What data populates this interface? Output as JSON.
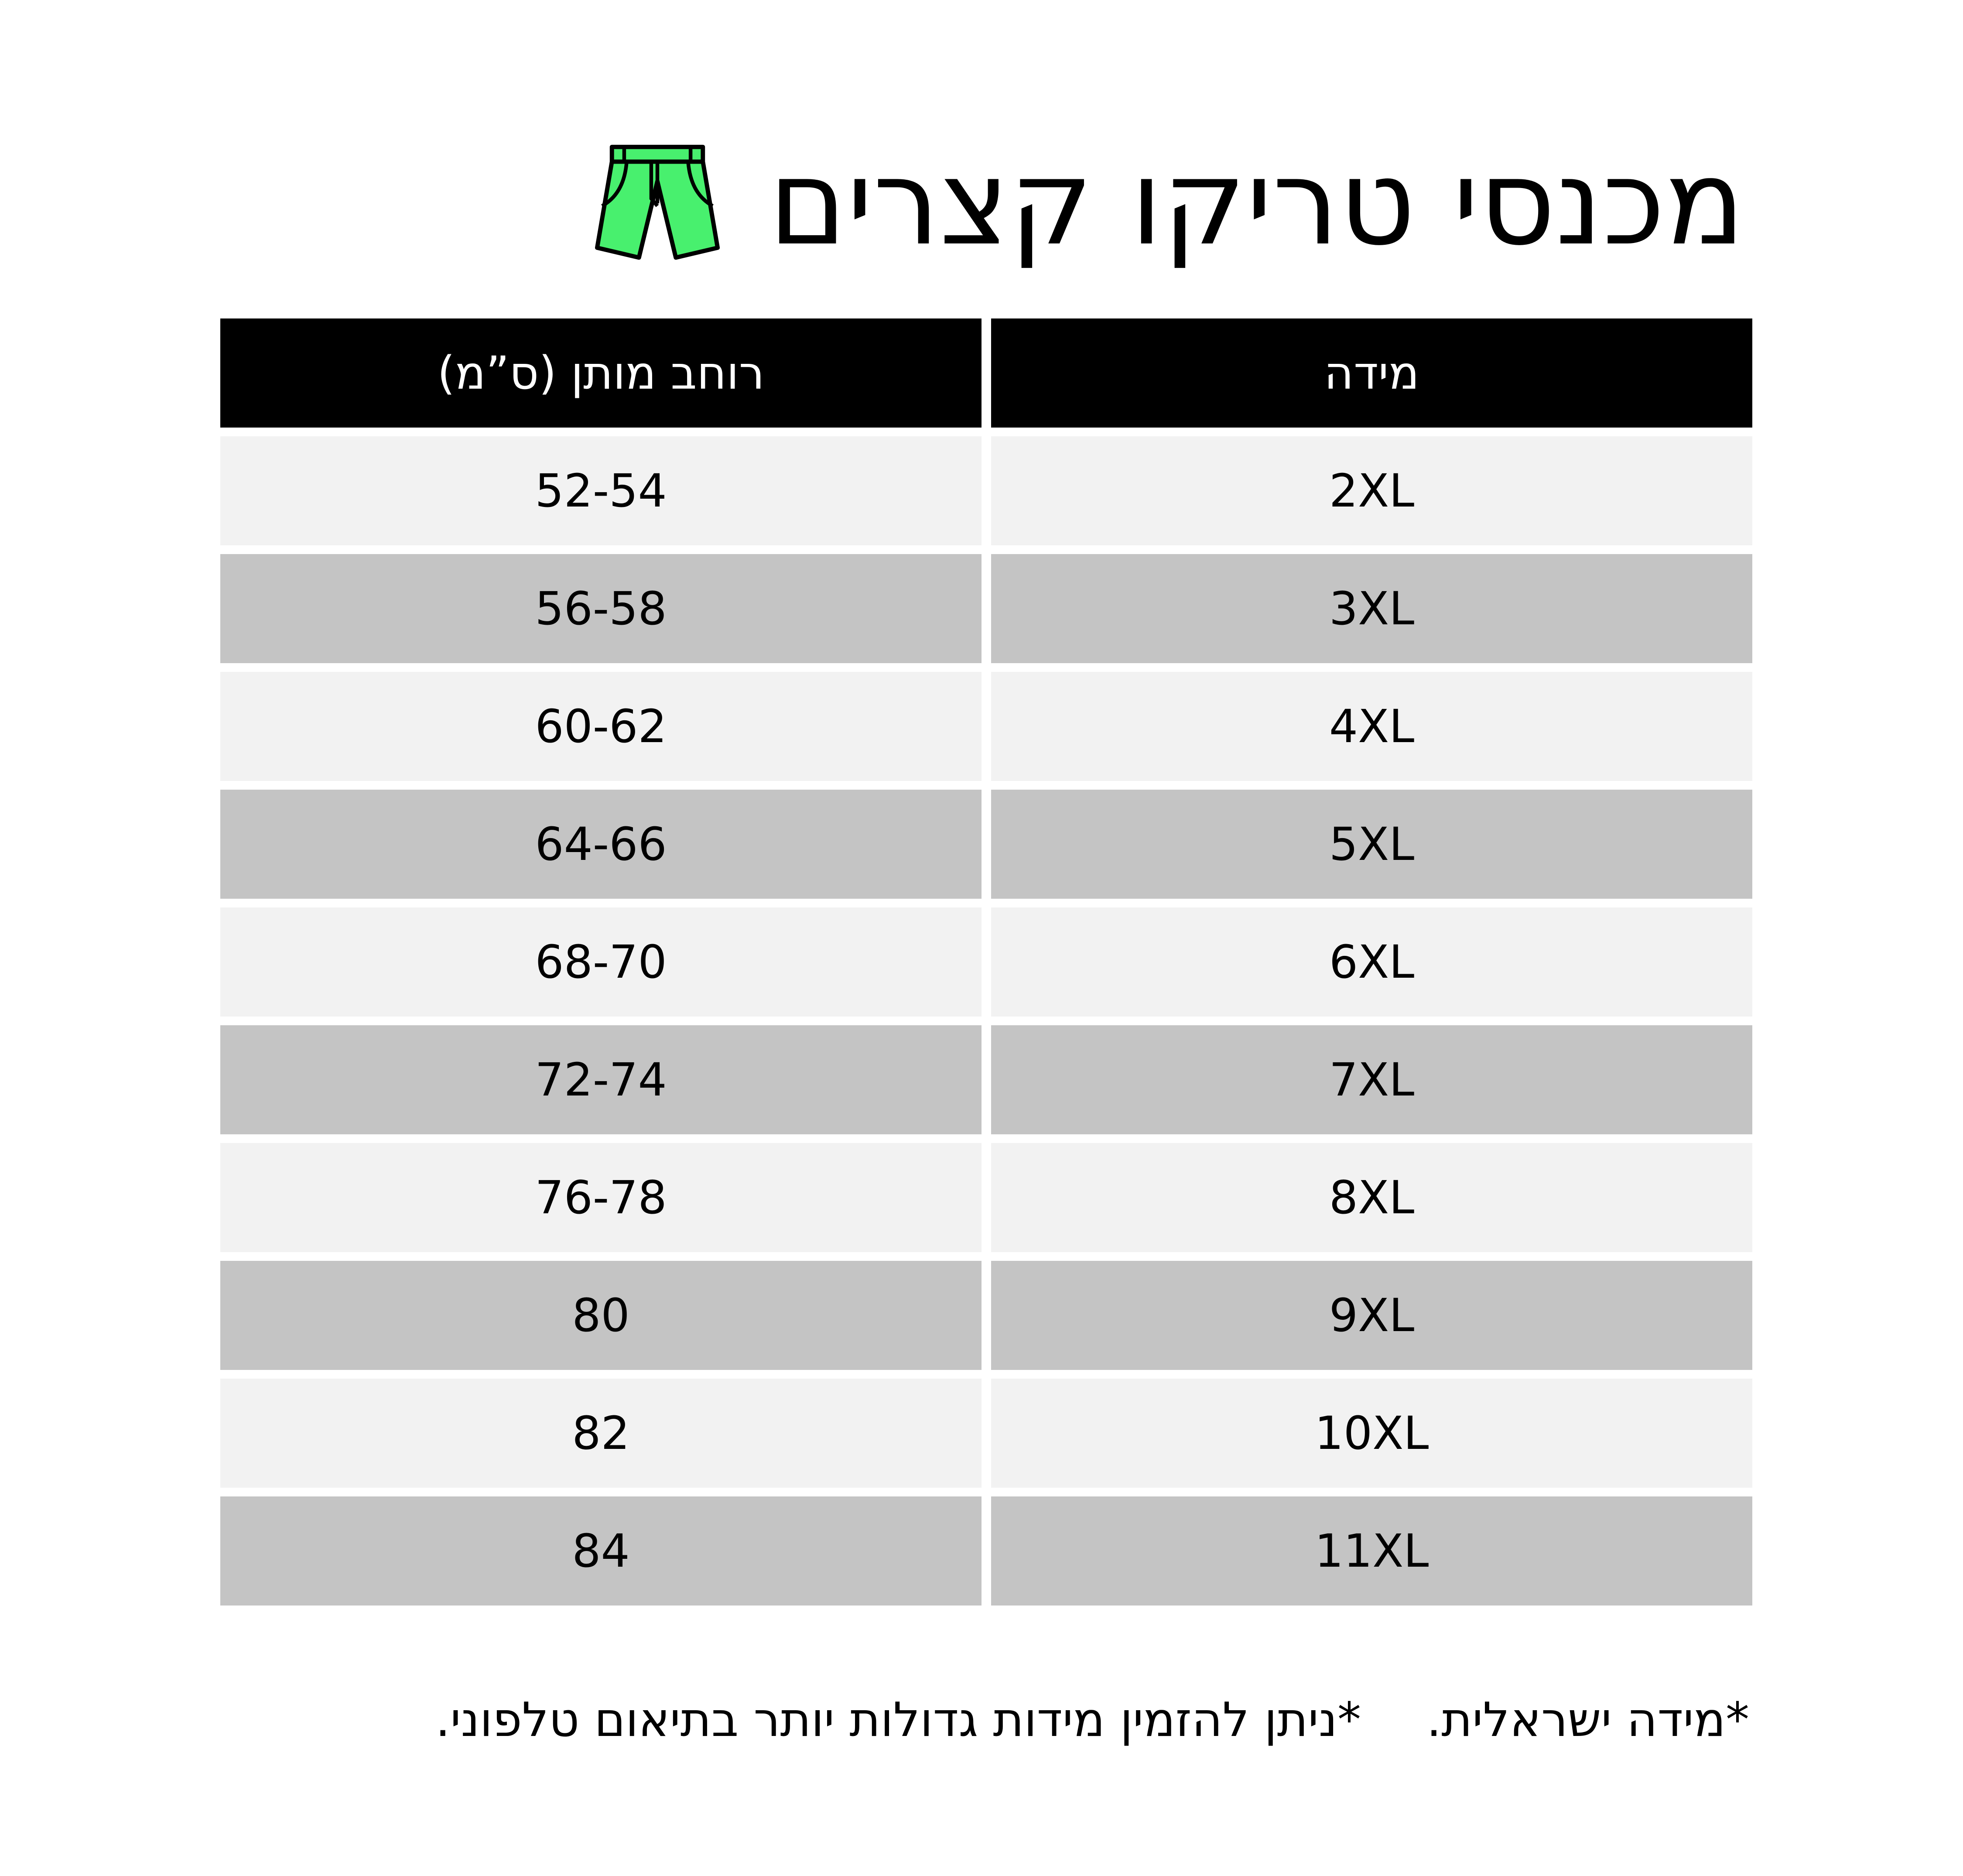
{
  "title": "מכנסי טריקו קצרים",
  "icon": "shorts-icon",
  "accent_color": "#48f06e",
  "table": {
    "headers": [
      "מידה",
      "רוחב מותן (ס”מ)"
    ],
    "rows": [
      [
        "2XL",
        "52-54"
      ],
      [
        "3XL",
        "56-58"
      ],
      [
        "4XL",
        "60-62"
      ],
      [
        "5XL",
        "64-66"
      ],
      [
        "6XL",
        "68-70"
      ],
      [
        "7XL",
        "72-74"
      ],
      [
        "8XL",
        "76-78"
      ],
      [
        "9XL",
        "80"
      ],
      [
        "10XL",
        "82"
      ],
      [
        "11XL",
        "84"
      ]
    ]
  },
  "footnotes": [
    "*מידה ישראלית.",
    "*ניתן להזמין מידות גדולות יותר בתיאום טלפוני."
  ]
}
